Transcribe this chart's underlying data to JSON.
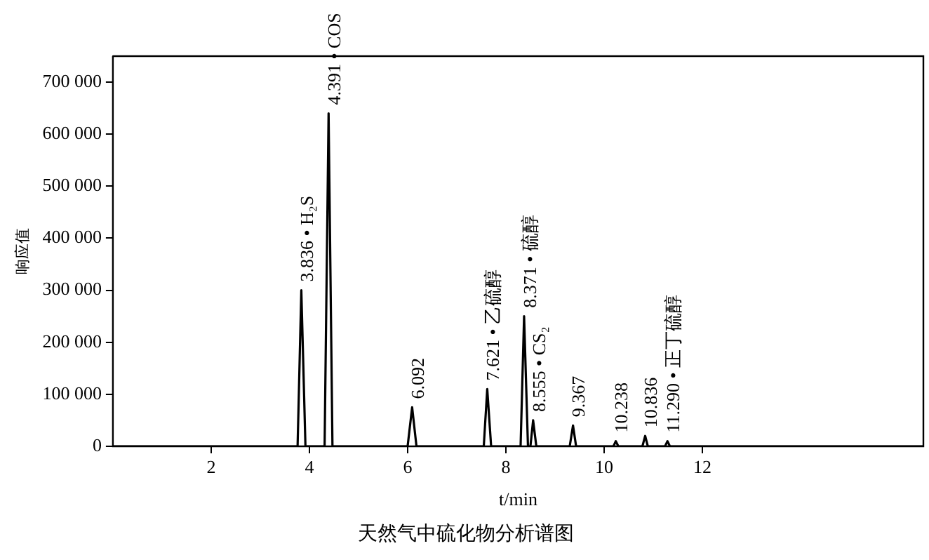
{
  "chart_data": {
    "type": "line",
    "title": "天然气中硫化物分析谱图",
    "xlabel": "t/min",
    "ylabel": "响应值",
    "x": [
      0,
      3.76,
      3.836,
      3.92,
      4.31,
      4.391,
      4.47,
      6.0,
      6.092,
      6.18,
      7.55,
      7.621,
      7.7,
      8.3,
      8.371,
      8.45,
      8.5,
      8.555,
      8.62,
      9.3,
      9.367,
      9.43,
      10.19,
      10.238,
      10.29,
      10.78,
      10.836,
      10.89,
      11.24,
      11.29,
      11.34,
      16.5
    ],
    "series": [
      {
        "color": "#000000",
        "values": [
          0,
          0,
          300000,
          0,
          0,
          640000,
          0,
          0,
          75000,
          0,
          0,
          110000,
          0,
          0,
          250000,
          0,
          0,
          50000,
          0,
          0,
          40000,
          0,
          0,
          10000,
          0,
          0,
          20000,
          0,
          0,
          10000,
          0,
          0
        ]
      }
    ],
    "annotations": [
      {
        "text": "3.836 • H₂S",
        "x": 3.836,
        "y": 300000
      },
      {
        "text": "4.391 • COS",
        "x": 4.391,
        "y": 640000
      },
      {
        "text": "6.092",
        "x": 6.092,
        "y": 75000
      },
      {
        "text": "7.621 • 乙硫醇",
        "x": 7.621,
        "y": 110000
      },
      {
        "text": "8.371 • 硫醇",
        "x": 8.371,
        "y": 250000
      },
      {
        "text": "8.555 • CS₂",
        "x": 8.555,
        "y": 50000
      },
      {
        "text": "9.367",
        "x": 9.367,
        "y": 40000
      },
      {
        "text": "10.238",
        "x": 10.238,
        "y": 10000
      },
      {
        "text": "10.836",
        "x": 10.836,
        "y": 20000
      },
      {
        "text": "11.290 • 正丁硫醇",
        "x": 11.29,
        "y": 10000
      }
    ],
    "xlim": [
      0,
      16.5
    ],
    "xticks": [
      2,
      4,
      6,
      8,
      10,
      12
    ],
    "ylim": [
      0,
      750000
    ],
    "yticks": [
      {
        "value": 0,
        "label": "0"
      },
      {
        "value": 100000,
        "label": "100 000"
      },
      {
        "value": 200000,
        "label": "200 000"
      },
      {
        "value": 300000,
        "label": "300 000"
      },
      {
        "value": 400000,
        "label": "400 000"
      },
      {
        "value": 500000,
        "label": "500 000"
      },
      {
        "value": 600000,
        "label": "600 000"
      },
      {
        "value": 700000,
        "label": "700 000"
      }
    ],
    "grid": false,
    "legend": false,
    "marker": "none",
    "line_style": "solid"
  }
}
